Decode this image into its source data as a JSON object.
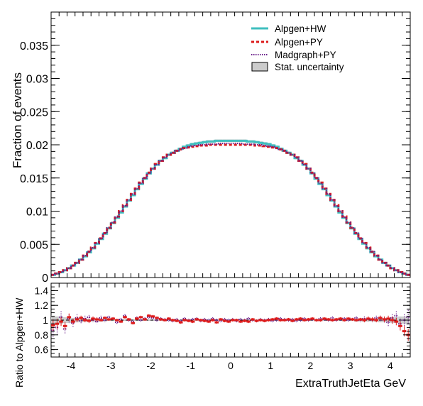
{
  "chart_data": [
    {
      "type": "line",
      "panel": "main",
      "ylabel": "Fraction of events",
      "xlim": [
        -4.5,
        4.5
      ],
      "ylim": [
        0,
        0.04
      ],
      "ytick_labels": [
        "0",
        "0.005",
        "0.01",
        "0.015",
        "0.02",
        "0.025",
        "0.03",
        "0.035"
      ],
      "ytick_values": [
        0,
        0.005,
        0.01,
        0.015,
        0.02,
        0.025,
        0.03,
        0.035
      ],
      "legend_position": "top-right",
      "legend": [
        {
          "label": "Alpgen+HW",
          "color": "#3fbfbf",
          "style": "solid"
        },
        {
          "label": "Alpgen+PY",
          "color": "#dd1c1c",
          "style": "dashed"
        },
        {
          "label": "Madgraph+PY",
          "color": "#6a1f8a",
          "style": "dotted"
        },
        {
          "label": "Stat. uncertainty",
          "color": "#cccccc",
          "style": "box"
        }
      ],
      "x": [
        -4.45,
        -4.35,
        -4.25,
        -4.15,
        -4.05,
        -3.95,
        -3.85,
        -3.75,
        -3.65,
        -3.55,
        -3.45,
        -3.35,
        -3.25,
        -3.15,
        -3.05,
        -2.95,
        -2.85,
        -2.75,
        -2.65,
        -2.55,
        -2.45,
        -2.35,
        -2.25,
        -2.15,
        -2.05,
        -1.95,
        -1.85,
        -1.75,
        -1.65,
        -1.55,
        -1.45,
        -1.35,
        -1.25,
        -1.15,
        -1.05,
        -0.95,
        -0.85,
        -0.75,
        -0.65,
        -0.55,
        -0.45,
        -0.35,
        -0.25,
        -0.15,
        -0.05,
        0.05,
        0.15,
        0.25,
        0.35,
        0.45,
        0.55,
        0.65,
        0.75,
        0.85,
        0.95,
        1.05,
        1.15,
        1.25,
        1.35,
        1.45,
        1.55,
        1.65,
        1.75,
        1.85,
        1.95,
        2.05,
        2.15,
        2.25,
        2.35,
        2.45,
        2.55,
        2.65,
        2.75,
        2.85,
        2.95,
        3.05,
        3.15,
        3.25,
        3.35,
        3.45,
        3.55,
        3.65,
        3.75,
        3.85,
        3.95,
        4.05,
        4.15,
        4.25,
        4.35,
        4.45
      ],
      "series": [
        {
          "name": "Alpgen+HW",
          "color": "#3fbfbf",
          "values": [
            0.0004,
            0.0006,
            0.0008,
            0.0011,
            0.0014,
            0.0018,
            0.0022,
            0.0027,
            0.0032,
            0.0038,
            0.0044,
            0.0051,
            0.0058,
            0.0066,
            0.0074,
            0.0082,
            0.009,
            0.0098,
            0.0107,
            0.0116,
            0.0124,
            0.0133,
            0.0141,
            0.0149,
            0.0157,
            0.0164,
            0.017,
            0.0176,
            0.018,
            0.0185,
            0.0188,
            0.0191,
            0.0194,
            0.0197,
            0.0199,
            0.0201,
            0.0202,
            0.0203,
            0.0204,
            0.0205,
            0.0205,
            0.0206,
            0.0206,
            0.0206,
            0.0206,
            0.0206,
            0.0206,
            0.0206,
            0.0206,
            0.0205,
            0.0205,
            0.0204,
            0.0203,
            0.0202,
            0.0201,
            0.0199,
            0.0197,
            0.0194,
            0.0191,
            0.0188,
            0.0185,
            0.018,
            0.0176,
            0.017,
            0.0164,
            0.0157,
            0.0149,
            0.0141,
            0.0133,
            0.0124,
            0.0116,
            0.0107,
            0.0098,
            0.009,
            0.0082,
            0.0074,
            0.0066,
            0.0058,
            0.0051,
            0.0044,
            0.0038,
            0.0032,
            0.0027,
            0.0022,
            0.0018,
            0.0014,
            0.0011,
            0.0008,
            0.0006,
            0.0004
          ]
        },
        {
          "name": "Alpgen+PY",
          "color": "#dd1c1c",
          "values": [
            0.0004,
            0.0006,
            0.0008,
            0.0011,
            0.0014,
            0.0018,
            0.0022,
            0.0027,
            0.0033,
            0.0039,
            0.0045,
            0.0052,
            0.0059,
            0.0067,
            0.0075,
            0.0083,
            0.0092,
            0.01,
            0.0109,
            0.0117,
            0.0126,
            0.0134,
            0.0143,
            0.015,
            0.0158,
            0.0164,
            0.0171,
            0.0176,
            0.0181,
            0.0185,
            0.0188,
            0.0191,
            0.0193,
            0.0195,
            0.0196,
            0.0197,
            0.0198,
            0.0199,
            0.0199,
            0.02,
            0.02,
            0.02,
            0.02,
            0.02,
            0.02,
            0.02,
            0.02,
            0.02,
            0.02,
            0.02,
            0.02,
            0.0199,
            0.0199,
            0.0198,
            0.0197,
            0.0196,
            0.0195,
            0.0193,
            0.0191,
            0.0188,
            0.0185,
            0.0181,
            0.0176,
            0.0171,
            0.0164,
            0.0158,
            0.015,
            0.0143,
            0.0134,
            0.0126,
            0.0117,
            0.0109,
            0.01,
            0.0092,
            0.0083,
            0.0075,
            0.0067,
            0.0059,
            0.0052,
            0.0045,
            0.0039,
            0.0033,
            0.0027,
            0.0022,
            0.0018,
            0.0014,
            0.0011,
            0.0008,
            0.0006,
            0.0004
          ]
        },
        {
          "name": "Madgraph+PY",
          "color": "#6a1f8a",
          "values": [
            0.0004,
            0.0006,
            0.0008,
            0.0011,
            0.0014,
            0.0018,
            0.0022,
            0.0027,
            0.0033,
            0.0039,
            0.0045,
            0.0052,
            0.0059,
            0.0067,
            0.0075,
            0.0083,
            0.0091,
            0.01,
            0.0108,
            0.0117,
            0.0126,
            0.0134,
            0.0142,
            0.015,
            0.0157,
            0.0164,
            0.017,
            0.0176,
            0.0181,
            0.0185,
            0.0188,
            0.0191,
            0.0193,
            0.0195,
            0.0197,
            0.0198,
            0.0199,
            0.02,
            0.02,
            0.0201,
            0.0201,
            0.0201,
            0.0202,
            0.0202,
            0.0202,
            0.0202,
            0.0202,
            0.0202,
            0.0201,
            0.0201,
            0.0201,
            0.02,
            0.02,
            0.0199,
            0.0198,
            0.0197,
            0.0195,
            0.0193,
            0.0191,
            0.0188,
            0.0185,
            0.0181,
            0.0176,
            0.017,
            0.0164,
            0.0157,
            0.015,
            0.0142,
            0.0134,
            0.0126,
            0.0117,
            0.0108,
            0.01,
            0.0091,
            0.0083,
            0.0075,
            0.0067,
            0.0059,
            0.0052,
            0.0045,
            0.0039,
            0.0033,
            0.0027,
            0.0022,
            0.0018,
            0.0014,
            0.0011,
            0.0008,
            0.0006,
            0.0004
          ]
        }
      ]
    },
    {
      "type": "line",
      "panel": "ratio",
      "xlabel": "ExtraTruthJetEta GeV",
      "ylabel": "Ratio to Alpgen+HW",
      "xlim": [
        -4.5,
        4.5
      ],
      "ylim": [
        0.5,
        1.5
      ],
      "xtick_labels": [
        "-4",
        "-3",
        "-2",
        "-1",
        "0",
        "1",
        "2",
        "3",
        "4"
      ],
      "xtick_values": [
        -4,
        -3,
        -2,
        -1,
        0,
        1,
        2,
        3,
        4
      ],
      "ytick_labels": [
        "0.6",
        "0.8",
        "1",
        "1.2",
        "1.4"
      ],
      "ytick_values": [
        0.6,
        0.8,
        1.0,
        1.2,
        1.4
      ],
      "stat_band_halfwidth": [
        0.06,
        0.05,
        0.05,
        0.04,
        0.04,
        0.03,
        0.03,
        0.03,
        0.02,
        0.02,
        0.02,
        0.02,
        0.02,
        0.02,
        0.01,
        0.01,
        0.01,
        0.01,
        0.01,
        0.01,
        0.01,
        0.01,
        0.01,
        0.01,
        0.01,
        0.01,
        0.01,
        0.01,
        0.01,
        0.01,
        0.01,
        0.01,
        0.01,
        0.01,
        0.01,
        0.01,
        0.01,
        0.01,
        0.01,
        0.01,
        0.01,
        0.01,
        0.01,
        0.01,
        0.01,
        0.01,
        0.01,
        0.01,
        0.01,
        0.01,
        0.01,
        0.01,
        0.01,
        0.01,
        0.01,
        0.01,
        0.01,
        0.01,
        0.01,
        0.01,
        0.01,
        0.01,
        0.01,
        0.01,
        0.01,
        0.01,
        0.01,
        0.01,
        0.01,
        0.01,
        0.01,
        0.01,
        0.01,
        0.01,
        0.01,
        0.01,
        0.02,
        0.02,
        0.02,
        0.02,
        0.02,
        0.02,
        0.03,
        0.03,
        0.03,
        0.04,
        0.04,
        0.05,
        0.05,
        0.06
      ],
      "series": [
        {
          "name": "Alpgen+PY",
          "color": "#dd1c1c",
          "values": [
            0.93,
            0.95,
            0.98,
            0.92,
            1.04,
            0.98,
            1.01,
            1.03,
            1.0,
            0.99,
            1.02,
            1.01,
            1.0,
            1.03,
            1.01,
            1.02,
            1.0,
            0.98,
            1.04,
            1.01,
            0.96,
            1.02,
            1.04,
            1.01,
            1.06,
            1.05,
            1.03,
            1.01,
            1.0,
            1.02,
            1.0,
            0.99,
            0.97,
            1.0,
            0.99,
            0.98,
            1.01,
            1.0,
            0.99,
            0.98,
            1.0,
            0.97,
            1.01,
            0.99,
            0.98,
            1.0,
            1.0,
            0.98,
            0.99,
            0.98,
            1.01,
            0.99,
            1.0,
            0.99,
            1.0,
            1.01,
            1.02,
            1.0,
            1.0,
            1.01,
            0.99,
            1.01,
            1.02,
            1.0,
            1.01,
            1.02,
            1.0,
            1.0,
            1.02,
            1.01,
            1.0,
            1.01,
            1.02,
            1.0,
            1.02,
            1.01,
            1.0,
            1.01,
            1.0,
            1.02,
            1.01,
            1.0,
            1.03,
            1.01,
            1.02,
            1.0,
            0.98,
            0.92,
            0.85,
            0.8
          ],
          "errors": [
            0.08,
            0.07,
            0.06,
            0.05,
            0.05,
            0.04,
            0.04,
            0.03,
            0.03,
            0.03,
            0.03,
            0.03,
            0.02,
            0.02,
            0.02,
            0.02,
            0.02,
            0.02,
            0.02,
            0.02,
            0.02,
            0.02,
            0.02,
            0.02,
            0.02,
            0.02,
            0.02,
            0.02,
            0.02,
            0.02,
            0.02,
            0.02,
            0.02,
            0.02,
            0.02,
            0.02,
            0.02,
            0.02,
            0.02,
            0.02,
            0.02,
            0.02,
            0.02,
            0.02,
            0.02,
            0.02,
            0.02,
            0.02,
            0.02,
            0.02,
            0.02,
            0.02,
            0.02,
            0.02,
            0.02,
            0.02,
            0.02,
            0.02,
            0.02,
            0.02,
            0.02,
            0.02,
            0.02,
            0.02,
            0.02,
            0.02,
            0.02,
            0.02,
            0.02,
            0.02,
            0.02,
            0.02,
            0.02,
            0.02,
            0.02,
            0.02,
            0.02,
            0.02,
            0.03,
            0.03,
            0.03,
            0.03,
            0.03,
            0.04,
            0.04,
            0.05,
            0.05,
            0.06,
            0.07,
            0.08
          ]
        },
        {
          "name": "Madgraph+PY",
          "color": "#6a1f8a",
          "values": [
            0.86,
            0.9,
            1.04,
            0.88,
            1.02,
            0.96,
            1.03,
            0.99,
            1.02,
            1.04,
            1.0,
            0.98,
            1.03,
            1.0,
            1.04,
            1.02,
            0.97,
            1.01,
            1.06,
            1.0,
            0.98,
            1.03,
            1.0,
            1.02,
            1.04,
            1.03,
            1.0,
            1.02,
            1.01,
            1.0,
            0.99,
            1.01,
            0.99,
            1.02,
            1.0,
            1.01,
            1.02,
            0.99,
            1.01,
            1.0,
            1.02,
            1.0,
            0.99,
            1.01,
            1.0,
            1.01,
            0.99,
            1.01,
            1.0,
            1.02,
            1.0,
            0.99,
            1.01,
            1.0,
            1.01,
            0.99,
            1.0,
            1.02,
            1.01,
            1.0,
            1.01,
            0.99,
            1.0,
            1.02,
            1.0,
            1.01,
            1.0,
            1.02,
            1.01,
            1.0,
            1.03,
            1.0,
            1.01,
            1.02,
            1.0,
            1.01,
            1.03,
            1.0,
            1.02,
            1.01,
            1.0,
            1.03,
            1.02,
            1.0,
            0.97,
            1.03,
            1.06,
            0.95,
            1.0,
            1.04
          ],
          "errors": [
            0.1,
            0.09,
            0.08,
            0.07,
            0.06,
            0.05,
            0.05,
            0.04,
            0.04,
            0.03,
            0.03,
            0.03,
            0.03,
            0.03,
            0.02,
            0.02,
            0.02,
            0.02,
            0.02,
            0.02,
            0.02,
            0.02,
            0.02,
            0.02,
            0.02,
            0.02,
            0.02,
            0.02,
            0.02,
            0.02,
            0.02,
            0.02,
            0.02,
            0.02,
            0.02,
            0.02,
            0.02,
            0.02,
            0.02,
            0.02,
            0.02,
            0.02,
            0.02,
            0.02,
            0.02,
            0.02,
            0.02,
            0.02,
            0.02,
            0.02,
            0.02,
            0.02,
            0.02,
            0.02,
            0.02,
            0.02,
            0.02,
            0.02,
            0.02,
            0.02,
            0.02,
            0.02,
            0.02,
            0.02,
            0.02,
            0.02,
            0.02,
            0.02,
            0.02,
            0.02,
            0.02,
            0.02,
            0.02,
            0.02,
            0.02,
            0.02,
            0.02,
            0.03,
            0.03,
            0.03,
            0.03,
            0.03,
            0.04,
            0.04,
            0.05,
            0.05,
            0.06,
            0.07,
            0.08,
            0.1
          ]
        }
      ]
    }
  ]
}
